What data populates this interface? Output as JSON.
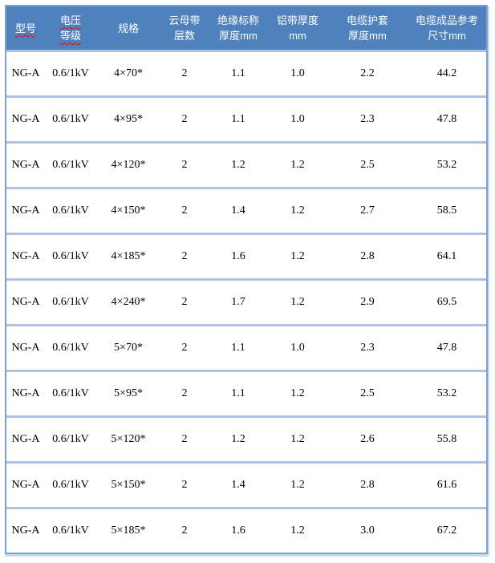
{
  "table": {
    "header": {
      "columns": [
        {
          "lines": [
            "型号"
          ],
          "misspell_marked": true
        },
        {
          "lines": [
            "电压",
            "等级"
          ],
          "misspell_marked": true
        },
        {
          "lines": [
            "规格"
          ],
          "misspell_marked": false
        },
        {
          "lines": [
            "云母带",
            "层数"
          ],
          "misspell_marked": false
        },
        {
          "lines": [
            "绝缘标称",
            "厚度mm"
          ],
          "misspell_marked": false
        },
        {
          "lines": [
            "铝带厚度",
            "mm"
          ],
          "misspell_marked": false
        },
        {
          "lines": [
            "电缆护套",
            "厚度mm"
          ],
          "misspell_marked": false
        },
        {
          "lines": [
            "电缆成品参考",
            "尺寸mm"
          ],
          "misspell_marked": false
        }
      ]
    },
    "rows": [
      [
        "NG-A",
        "0.6/1kV",
        "4×70*",
        "2",
        "1.1",
        "1.0",
        "2.2",
        "44.2"
      ],
      [
        "NG-A",
        "0.6/1kV",
        "4×95*",
        "2",
        "1.1",
        "1.0",
        "2.3",
        "47.8"
      ],
      [
        "NG-A",
        "0.6/1kV",
        "4×120*",
        "2",
        "1.2",
        "1.2",
        "2.5",
        "53.2"
      ],
      [
        "NG-A",
        "0.6/1kV",
        "4×150*",
        "2",
        "1.4",
        "1.2",
        "2.7",
        "58.5"
      ],
      [
        "NG-A",
        "0.6/1kV",
        "4×185*",
        "2",
        "1.6",
        "1.2",
        "2.8",
        "64.1"
      ],
      [
        "NG-A",
        "0.6/1kV",
        "4×240*",
        "2",
        "1.7",
        "1.2",
        "2.9",
        "69.5"
      ],
      [
        "NG-A",
        "0.6/1kV",
        "5×70*",
        "2",
        "1.1",
        "1.0",
        "2.3",
        "47.8"
      ],
      [
        "NG-A",
        "0.6/1kV",
        "5×95*",
        "2",
        "1.1",
        "1.2",
        "2.5",
        "53.2"
      ],
      [
        "NG-A",
        "0.6/1kV",
        "5×120*",
        "2",
        "1.2",
        "1.2",
        "2.6",
        "55.8"
      ],
      [
        "NG-A",
        "0.6/1kV",
        "5×150*",
        "2",
        "1.4",
        "1.2",
        "2.8",
        "61.6"
      ],
      [
        "NG-A",
        "0.6/1kV",
        "5×185*",
        "2",
        "1.6",
        "1.2",
        "3.0",
        "67.2"
      ]
    ]
  },
  "colors": {
    "header_bg": "#4F81BD",
    "header_text": "#FFFFFF",
    "outer_border": "#7EA0D0",
    "row_divider": "#AEC2E1",
    "outer_glow": "#CCD9EC",
    "spellcheck_underline": "#FF0000",
    "body_text": "#000000"
  },
  "misspelled_terms": [
    "型号",
    "电压",
    "等级"
  ]
}
